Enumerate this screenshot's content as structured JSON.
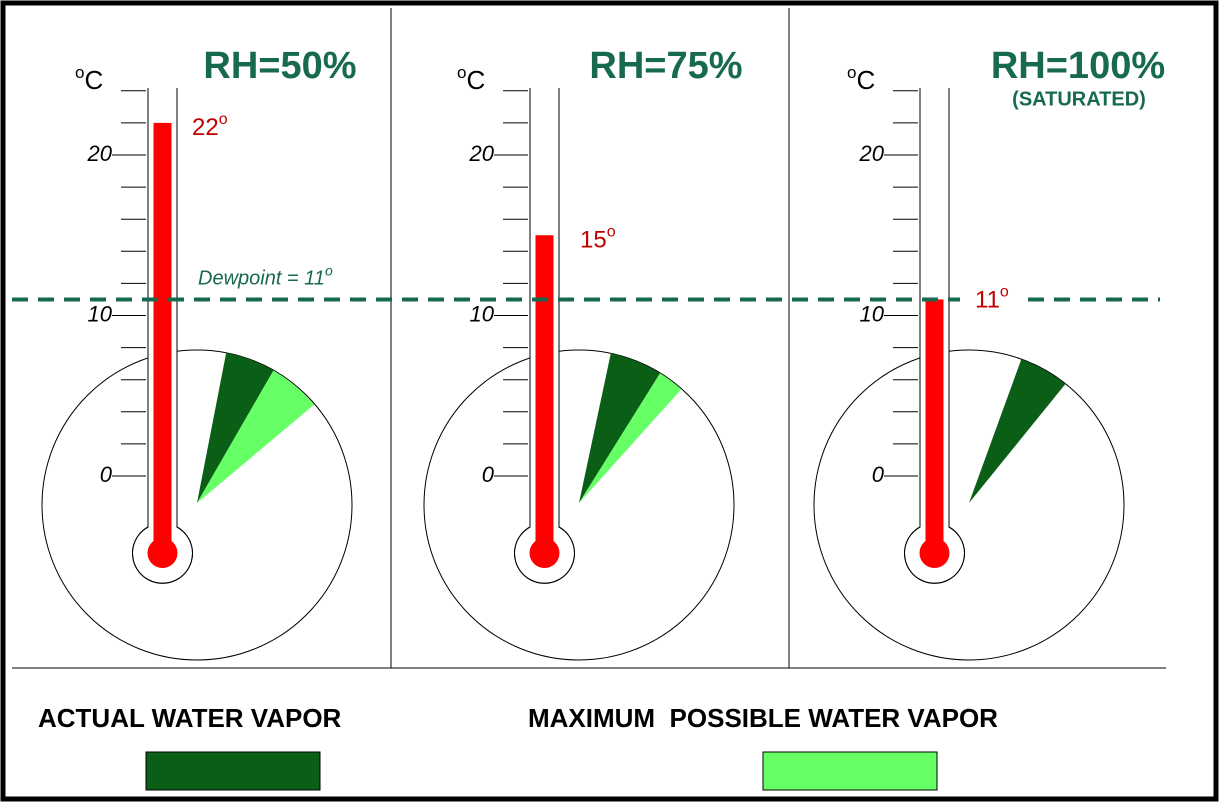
{
  "scale": {
    "unit_sup": "o",
    "unit": "C",
    "ticks": [
      0,
      10,
      20
    ]
  },
  "dewpoint": {
    "label": "Dewpoint = ",
    "value": 11,
    "sup": "o"
  },
  "panels": [
    {
      "title": "RH=50%",
      "temperature": 22,
      "temp_sup": "o"
    },
    {
      "title": "RH=75%",
      "temperature": 15,
      "temp_sup": "o"
    },
    {
      "title": "RH=100%",
      "subtitle": "(SATURATED)",
      "temperature": 11,
      "temp_sup": "o"
    }
  ],
  "legend": {
    "actual": "ACTUAL WATER VAPOR",
    "maximum": "MAXIMUM  POSSIBLE WATER VAPOR"
  }
}
